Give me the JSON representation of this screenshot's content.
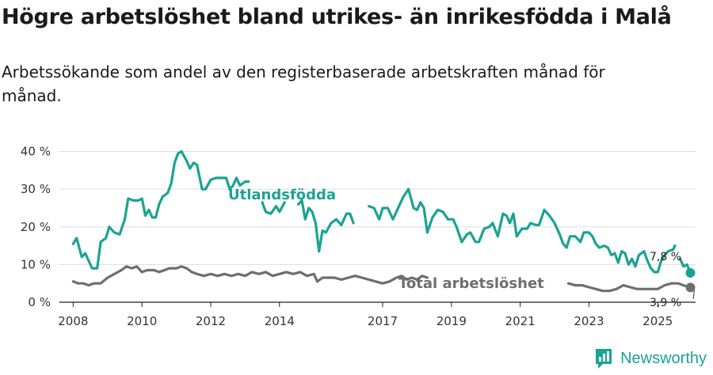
{
  "title": "Högre arbetslöshet bland utrikes- än inrikesfödda i Malå",
  "subtitle": "Arbetssökande som andel av den registerbaserade arbetskraften månad för månad.",
  "brand": {
    "name": "Newsworthy"
  },
  "colors": {
    "foreign": "#1aa394",
    "total": "#6e6e6e",
    "grid": "#dddddd",
    "brand": "#1aa394"
  },
  "chart_data": {
    "type": "line",
    "title": "Högre arbetslöshet bland utrikes- än inrikesfödda i Malå",
    "subtitle": "Arbetssökande som andel av den registerbaserade arbetskraften månad för månad.",
    "xlabel": "",
    "ylabel": "",
    "ylim": [
      0,
      42
    ],
    "xlim": [
      2007.6,
      2026.1
    ],
    "y_ticks": [
      0,
      10,
      20,
      30,
      40
    ],
    "y_tick_labels": [
      "0 %",
      "10 %",
      "20 %",
      "30 %",
      "40 %"
    ],
    "x_ticks": [
      2008,
      2010,
      2012,
      2014,
      2017,
      2019,
      2021,
      2023,
      2025
    ],
    "x_tick_labels": [
      "2008",
      "2010",
      "2012",
      "2014",
      "2017",
      "2019",
      "2021",
      "2023",
      "2025"
    ],
    "grid": true,
    "series": [
      {
        "name": "Utlandsfödda",
        "color": "#1aa394",
        "end_label": "7,8 %",
        "end_value": 7.8,
        "points": [
          [
            2008.0,
            15.5
          ],
          [
            2008.1,
            17.0
          ],
          [
            2008.25,
            12.0
          ],
          [
            2008.35,
            13.0
          ],
          [
            2008.45,
            11.0
          ],
          [
            2008.55,
            9.0
          ],
          [
            2008.7,
            9.0
          ],
          [
            2008.8,
            16.0
          ],
          [
            2008.95,
            17.0
          ],
          [
            2009.05,
            20.0
          ],
          [
            2009.2,
            18.5
          ],
          [
            2009.35,
            18.0
          ],
          [
            2009.5,
            22.0
          ],
          [
            2009.6,
            27.5
          ],
          [
            2009.75,
            27.0
          ],
          [
            2009.9,
            27.0
          ],
          [
            2010.0,
            27.5
          ],
          [
            2010.1,
            23.0
          ],
          [
            2010.2,
            24.5
          ],
          [
            2010.3,
            22.5
          ],
          [
            2010.4,
            22.5
          ],
          [
            2010.5,
            26.0
          ],
          [
            2010.6,
            28.0
          ],
          [
            2010.75,
            29.0
          ],
          [
            2010.85,
            31.5
          ],
          [
            2010.95,
            37.0
          ],
          [
            2011.05,
            39.5
          ],
          [
            2011.15,
            40.0
          ],
          [
            2011.3,
            37.5
          ],
          [
            2011.4,
            35.5
          ],
          [
            2011.5,
            37.0
          ],
          [
            2011.6,
            36.5
          ],
          [
            2011.75,
            30.0
          ],
          [
            2011.85,
            30.0
          ],
          [
            2012.0,
            32.5
          ],
          [
            2012.15,
            33.0
          ],
          [
            2012.3,
            33.0
          ],
          [
            2012.45,
            33.0
          ],
          [
            2012.55,
            30.0
          ],
          [
            2012.65,
            31.0
          ],
          [
            2012.75,
            33.0
          ],
          [
            2012.85,
            31.0
          ],
          [
            2013.0,
            32.0
          ],
          [
            2013.1,
            32.0
          ],
          null,
          [
            2013.5,
            26.5
          ],
          [
            2013.6,
            24.0
          ],
          [
            2013.75,
            23.5
          ],
          [
            2013.9,
            25.5
          ],
          [
            2014.0,
            24.0
          ],
          [
            2014.15,
            26.5
          ],
          null,
          [
            2014.55,
            26.0
          ],
          [
            2014.65,
            27.0
          ],
          [
            2014.75,
            22.0
          ],
          [
            2014.85,
            25.0
          ],
          [
            2014.95,
            24.0
          ],
          [
            2015.05,
            21.0
          ],
          [
            2015.15,
            13.5
          ],
          [
            2015.25,
            19.0
          ],
          [
            2015.35,
            18.5
          ],
          [
            2015.5,
            21.0
          ],
          [
            2015.65,
            22.0
          ],
          [
            2015.8,
            20.5
          ],
          [
            2015.95,
            23.5
          ],
          [
            2016.05,
            23.5
          ],
          [
            2016.15,
            21.0
          ],
          null,
          [
            2016.6,
            25.5
          ],
          [
            2016.75,
            25.0
          ],
          [
            2016.9,
            22.0
          ],
          [
            2017.0,
            25.0
          ],
          [
            2017.15,
            25.0
          ],
          [
            2017.3,
            22.0
          ],
          [
            2017.45,
            25.0
          ],
          [
            2017.6,
            28.0
          ],
          [
            2017.75,
            30.0
          ],
          [
            2017.9,
            25.0
          ],
          [
            2018.0,
            24.5
          ],
          [
            2018.1,
            26.5
          ],
          [
            2018.2,
            25.0
          ],
          [
            2018.3,
            18.5
          ],
          [
            2018.45,
            22.5
          ],
          [
            2018.6,
            24.5
          ],
          [
            2018.75,
            24.0
          ],
          [
            2018.9,
            22.0
          ],
          [
            2019.05,
            22.0
          ],
          [
            2019.15,
            20.0
          ],
          [
            2019.3,
            16.0
          ],
          [
            2019.45,
            18.0
          ],
          [
            2019.55,
            18.5
          ],
          [
            2019.7,
            16.0
          ],
          [
            2019.8,
            16.0
          ],
          [
            2019.95,
            19.5
          ],
          [
            2020.1,
            20.0
          ],
          [
            2020.2,
            21.0
          ],
          [
            2020.35,
            17.5
          ],
          [
            2020.5,
            23.5
          ],
          [
            2020.6,
            23.0
          ],
          [
            2020.7,
            21.0
          ],
          [
            2020.8,
            23.5
          ],
          [
            2020.9,
            17.5
          ],
          [
            2021.05,
            19.5
          ],
          [
            2021.2,
            19.5
          ],
          [
            2021.3,
            21.0
          ],
          [
            2021.45,
            20.5
          ],
          [
            2021.55,
            20.5
          ],
          [
            2021.7,
            24.5
          ],
          [
            2021.85,
            23.0
          ],
          [
            2022.0,
            21.0
          ],
          [
            2022.15,
            18.0
          ],
          [
            2022.25,
            15.5
          ],
          [
            2022.35,
            14.5
          ],
          [
            2022.45,
            17.5
          ],
          [
            2022.6,
            17.5
          ],
          [
            2022.75,
            16.0
          ],
          [
            2022.85,
            18.5
          ],
          [
            2023.0,
            18.5
          ],
          [
            2023.1,
            17.5
          ],
          [
            2023.2,
            15.5
          ],
          [
            2023.3,
            14.5
          ],
          [
            2023.45,
            15.0
          ],
          [
            2023.55,
            14.5
          ],
          [
            2023.65,
            12.5
          ],
          [
            2023.75,
            13.0
          ],
          [
            2023.85,
            10.5
          ],
          [
            2023.95,
            13.5
          ],
          [
            2024.05,
            13.0
          ],
          [
            2024.15,
            10.0
          ],
          [
            2024.25,
            11.5
          ],
          [
            2024.35,
            9.5
          ],
          [
            2024.45,
            12.5
          ],
          [
            2024.6,
            13.5
          ],
          [
            2024.7,
            11.0
          ],
          [
            2024.8,
            9.0
          ],
          [
            2024.9,
            8.0
          ],
          [
            2025.0,
            8.0
          ],
          [
            2025.1,
            11.0
          ],
          [
            2025.2,
            12.5
          ],
          [
            2025.3,
            13.5
          ],
          [
            2025.45,
            14.0
          ],
          [
            2025.5,
            15.0
          ],
          null,
          [
            2025.65,
            11.5
          ],
          [
            2025.75,
            9.5
          ],
          [
            2025.85,
            10.0
          ],
          [
            2025.95,
            7.8
          ]
        ]
      },
      {
        "name": "Total arbetslöshet",
        "color": "#6e6e6e",
        "end_label": "3,9 %",
        "end_value": 3.9,
        "points": [
          [
            2008.0,
            5.5
          ],
          [
            2008.15,
            5.0
          ],
          [
            2008.3,
            5.0
          ],
          [
            2008.45,
            4.5
          ],
          [
            2008.6,
            5.0
          ],
          [
            2008.8,
            5.0
          ],
          [
            2009.0,
            6.5
          ],
          [
            2009.2,
            7.5
          ],
          [
            2009.4,
            8.5
          ],
          [
            2009.55,
            9.5
          ],
          [
            2009.7,
            9.0
          ],
          [
            2009.85,
            9.5
          ],
          [
            2010.0,
            8.0
          ],
          [
            2010.15,
            8.5
          ],
          [
            2010.35,
            8.5
          ],
          [
            2010.5,
            8.0
          ],
          [
            2010.65,
            8.5
          ],
          [
            2010.8,
            9.0
          ],
          [
            2011.0,
            9.0
          ],
          [
            2011.15,
            9.5
          ],
          [
            2011.3,
            9.0
          ],
          [
            2011.45,
            8.0
          ],
          [
            2011.6,
            7.5
          ],
          [
            2011.8,
            7.0
          ],
          [
            2012.0,
            7.5
          ],
          [
            2012.2,
            7.0
          ],
          [
            2012.4,
            7.5
          ],
          [
            2012.6,
            7.0
          ],
          [
            2012.8,
            7.5
          ],
          [
            2013.0,
            7.0
          ],
          [
            2013.2,
            8.0
          ],
          [
            2013.4,
            7.5
          ],
          [
            2013.6,
            8.0
          ],
          [
            2013.8,
            7.0
          ],
          [
            2014.0,
            7.5
          ],
          [
            2014.2,
            8.0
          ],
          [
            2014.4,
            7.5
          ],
          [
            2014.6,
            8.0
          ],
          [
            2014.8,
            7.0
          ],
          [
            2015.0,
            7.5
          ],
          [
            2015.1,
            5.5
          ],
          [
            2015.25,
            6.5
          ],
          [
            2015.4,
            6.5
          ],
          [
            2015.6,
            6.5
          ],
          [
            2015.8,
            6.0
          ],
          [
            2016.0,
            6.5
          ],
          [
            2016.2,
            7.0
          ],
          [
            2016.4,
            6.5
          ],
          [
            2016.6,
            6.0
          ],
          [
            2016.8,
            5.5
          ],
          [
            2017.0,
            5.0
          ],
          [
            2017.2,
            5.5
          ],
          [
            2017.4,
            6.5
          ],
          [
            2017.55,
            7.0
          ],
          [
            2017.7,
            6.0
          ],
          [
            2017.85,
            6.5
          ],
          [
            2018.0,
            6.0
          ],
          [
            2018.15,
            7.0
          ],
          [
            2018.3,
            6.5
          ],
          null,
          [
            2022.4,
            5.0
          ],
          [
            2022.6,
            4.5
          ],
          [
            2022.8,
            4.5
          ],
          [
            2023.0,
            4.0
          ],
          [
            2023.2,
            3.5
          ],
          [
            2023.4,
            3.0
          ],
          [
            2023.6,
            3.0
          ],
          [
            2023.8,
            3.5
          ],
          [
            2024.0,
            4.5
          ],
          [
            2024.2,
            4.0
          ],
          [
            2024.4,
            3.5
          ],
          [
            2024.6,
            3.5
          ],
          [
            2024.8,
            3.5
          ],
          [
            2025.0,
            3.5
          ],
          [
            2025.2,
            4.5
          ],
          [
            2025.4,
            5.0
          ],
          [
            2025.6,
            5.0
          ],
          [
            2025.75,
            4.5
          ],
          [
            2025.95,
            3.9
          ]
        ]
      }
    ]
  }
}
